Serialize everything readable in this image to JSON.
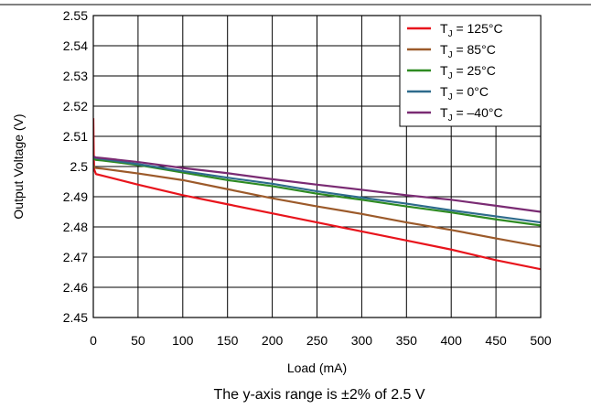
{
  "chart_data": {
    "type": "line",
    "xlabel": "Load (mA)",
    "ylabel": "Output Voltage (V)",
    "caption": "The y-axis range is ±2% of 2.5 V",
    "xlim": [
      0,
      500
    ],
    "ylim": [
      2.45,
      2.55
    ],
    "xticks": [
      "0",
      "50",
      "100",
      "150",
      "200",
      "250",
      "300",
      "350",
      "400",
      "450",
      "500"
    ],
    "yticks": [
      "2.45",
      "2.46",
      "2.47",
      "2.48",
      "2.49",
      "2.5",
      "2.51",
      "2.52",
      "2.53",
      "2.54",
      "2.55"
    ],
    "grid": true,
    "legend_position": "top-right",
    "series": [
      {
        "name_main": "T",
        "name_sub": "J",
        "name_rest": " = 125°C",
        "color": "#e8141c",
        "x": [
          0,
          0.5,
          1,
          3,
          10,
          50,
          100,
          150,
          200,
          250,
          300,
          350,
          400,
          450,
          500
        ],
        "y": [
          2.516,
          2.503,
          2.499,
          2.4975,
          2.497,
          2.494,
          2.4905,
          2.4875,
          2.4845,
          2.4815,
          2.4785,
          2.4755,
          2.4725,
          2.469,
          2.466
        ]
      },
      {
        "name_main": "T",
        "name_sub": "J",
        "name_rest": " = 85°C",
        "color": "#9c5a2a",
        "x": [
          0,
          1,
          3,
          10,
          50,
          100,
          150,
          200,
          250,
          300,
          350,
          400,
          450,
          500
        ],
        "y": [
          2.5005,
          2.4998,
          2.4995,
          2.4993,
          2.4977,
          2.4955,
          2.4925,
          2.4895,
          2.4868,
          2.4843,
          2.4815,
          2.479,
          2.4762,
          2.4735
        ]
      },
      {
        "name_main": "T",
        "name_sub": "J",
        "name_rest": " = 25°C",
        "color": "#2e8b22",
        "x": [
          0,
          1,
          3,
          10,
          50,
          100,
          150,
          200,
          250,
          300,
          350,
          400,
          450,
          500
        ],
        "y": [
          2.5028,
          2.5025,
          2.5022,
          2.502,
          2.5005,
          2.498,
          2.4955,
          2.4935,
          2.491,
          2.489,
          2.4868,
          2.4848,
          2.4825,
          2.4805
        ]
      },
      {
        "name_main": "T",
        "name_sub": "J",
        "name_rest": " = 0°C",
        "color": "#2e6b8c",
        "x": [
          0,
          1,
          3,
          10,
          50,
          100,
          150,
          200,
          250,
          300,
          350,
          400,
          450,
          500
        ],
        "y": [
          2.5032,
          2.503,
          2.5028,
          2.5025,
          2.5008,
          2.4985,
          2.4963,
          2.4943,
          2.4918,
          2.4897,
          2.4877,
          2.4855,
          2.4835,
          2.4815
        ]
      },
      {
        "name_main": "T",
        "name_sub": "J",
        "name_rest": " = –40°C",
        "color": "#7a2b73",
        "x": [
          0,
          1,
          3,
          10,
          50,
          100,
          150,
          200,
          250,
          300,
          350,
          400,
          450,
          500
        ],
        "y": [
          2.5033,
          2.5032,
          2.503,
          2.5028,
          2.5015,
          2.4995,
          2.4978,
          2.4958,
          2.494,
          2.4923,
          2.4905,
          2.489,
          2.487,
          2.485
        ]
      }
    ]
  }
}
